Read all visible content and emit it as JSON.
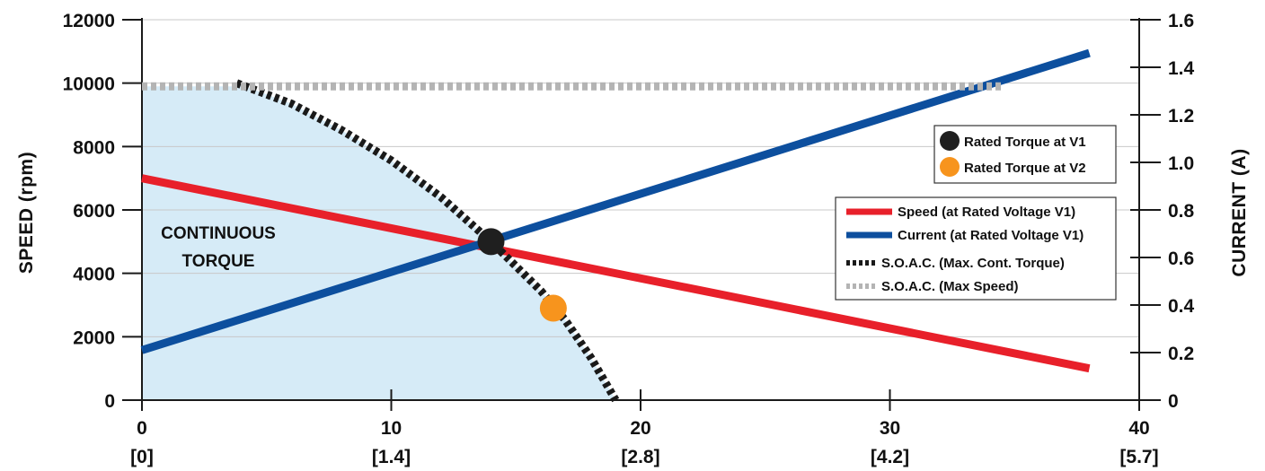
{
  "chart_data": {
    "type": "line",
    "y_left": {
      "label": "SPEED (rpm)",
      "range": [
        0,
        12000
      ],
      "ticks": [
        "0",
        "2000",
        "4000",
        "6000",
        "8000",
        "10000",
        "12000"
      ]
    },
    "y_right": {
      "label": "CURRENT (A)",
      "range": [
        0,
        1.6
      ],
      "ticks": [
        "0",
        "0.2",
        "0.4",
        "0.6",
        "0.8",
        "1.0",
        "1.2",
        "1.4",
        "1.6"
      ]
    },
    "x": {
      "range": [
        0,
        40
      ],
      "ticks": [
        "0",
        "10",
        "20",
        "30",
        "40"
      ],
      "secondary_ticks": [
        "[0]",
        "[1.4]",
        "[2.8]",
        "[4.2]",
        "[5.7]"
      ]
    },
    "grid": "horizontal",
    "region_label": [
      "CONTINUOUS",
      "TORQUE"
    ],
    "series": [
      {
        "name": "Speed (at Rated Voltage V1)",
        "axis": "left",
        "color": "#e8202a",
        "x": [
          0,
          38
        ],
        "y": [
          7000,
          1000
        ]
      },
      {
        "name": "Current (at Rated Voltage V1)",
        "axis": "right",
        "color": "#0d4f9e",
        "x": [
          0,
          38
        ],
        "y": [
          0.21,
          1.46
        ]
      },
      {
        "name": "S.O.A.C. (Max. Cont. Torque)",
        "axis": "left",
        "color": "#1a1a1a",
        "style": "dotted",
        "x": [
          3.8,
          6,
          8,
          10,
          12,
          14,
          16,
          17,
          18,
          19
        ],
        "y": [
          10000,
          9350,
          8520,
          7560,
          6400,
          5000,
          3450,
          2500,
          1350,
          0
        ]
      },
      {
        "name": "S.O.A.C. (Max Speed)",
        "axis": "left",
        "color": "#b4b4b4",
        "style": "dotted",
        "x": [
          0,
          34.5
        ],
        "y": [
          9900,
          9900
        ]
      }
    ],
    "markers": [
      {
        "name": "Rated Torque at V1",
        "color": "#1f1f1f",
        "x": 14,
        "y": 5000
      },
      {
        "name": "Rated Torque at V2",
        "color": "#f7941d",
        "x": 16.5,
        "y": 2900
      }
    ],
    "legend_markers_position": "upper-right",
    "legend_lines_position": "right"
  }
}
